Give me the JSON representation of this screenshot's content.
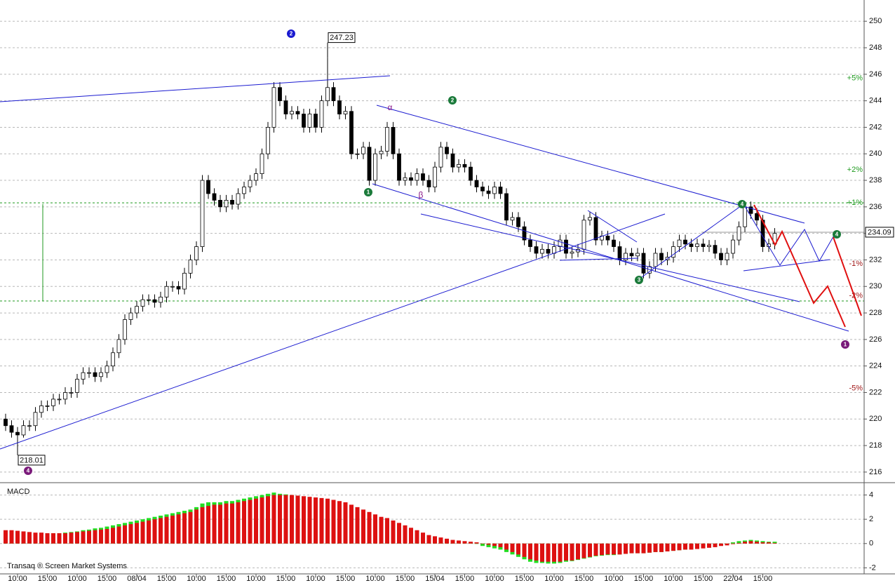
{
  "chart_data": [
    {
      "type": "candlestick",
      "categories": [
        null,
        null,
        "10:00",
        null,
        null,
        null,
        null,
        "15:00",
        null,
        null,
        null,
        null,
        "10:00",
        null,
        null,
        null,
        null,
        "15:00",
        null,
        null,
        null,
        null,
        "08/04",
        null,
        null,
        null,
        null,
        "15:00",
        null,
        null,
        null,
        null,
        "10:00",
        null,
        null,
        null,
        null,
        "15:00",
        null,
        null,
        null,
        null,
        "10:00",
        null,
        null,
        null,
        null,
        "15:00",
        null,
        null,
        null,
        null,
        "10:00",
        null,
        null,
        null,
        null,
        "15:00",
        null,
        null,
        null,
        null,
        "10:00",
        null,
        null,
        null,
        null,
        "15:00",
        null,
        null,
        null,
        null,
        "15/04",
        null,
        null,
        null,
        null,
        "15:00",
        null,
        null,
        null,
        null,
        "10:00",
        null,
        null,
        null,
        null,
        "15:00",
        null,
        null,
        null,
        null,
        "10:00",
        null,
        null,
        null,
        null,
        "15:00",
        null,
        null,
        null,
        null,
        "10:00",
        null,
        null,
        null,
        null,
        "15:00",
        null,
        null,
        null,
        null,
        "10:00",
        null,
        null,
        null,
        null,
        "15:00",
        null,
        null,
        null,
        null,
        "22/04",
        null,
        null,
        null,
        null,
        "15:00",
        null,
        null
      ],
      "open": [
        220,
        219.5,
        219,
        218.8,
        219.5,
        219.5,
        220.5,
        221,
        221,
        221.5,
        221.5,
        222,
        222,
        223,
        223.5,
        223.5,
        223.2,
        223.5,
        224,
        225,
        226,
        227.5,
        228,
        228.5,
        229,
        229,
        228.8,
        229.2,
        230,
        230,
        229.8,
        231,
        232,
        233,
        238,
        237,
        236.5,
        236,
        236.5,
        236.2,
        237,
        237.5,
        238,
        238.5,
        240,
        242,
        245,
        244,
        243,
        243.2,
        243,
        242,
        243,
        242,
        244,
        245,
        244,
        243,
        243.2,
        240,
        240,
        240.5,
        238,
        240,
        240.2,
        242,
        240,
        238,
        238.2,
        238,
        238.5,
        238,
        237.5,
        239,
        240.5,
        240,
        239,
        239.2,
        239,
        238,
        237.5,
        237.2,
        237,
        237.5,
        237,
        235,
        235.2,
        234.5,
        233.5,
        233,
        232.5,
        232.8,
        232.5,
        233,
        233.5,
        232.5,
        232.6,
        232.8,
        235,
        235.2,
        233.5,
        233.8,
        233.5,
        233,
        232,
        232.5,
        232.3,
        232.5,
        231,
        231.5,
        232.5,
        232,
        232.2,
        233,
        233.5,
        233.2,
        233,
        233.2,
        233,
        233.1,
        232.5,
        232,
        232.5,
        233.5,
        234.5,
        236,
        235.5,
        235,
        233,
        233.2
      ],
      "high": [
        220.4,
        219.9,
        219.4,
        219.9,
        219.9,
        220.9,
        221.4,
        221.4,
        221.9,
        221.9,
        222.4,
        222.4,
        223.4,
        223.9,
        223.9,
        223.9,
        223.9,
        224.4,
        225.4,
        226.4,
        227.9,
        228.4,
        228.9,
        229.4,
        229.4,
        229.4,
        229.6,
        230.4,
        230.4,
        230.4,
        231.4,
        232.4,
        233.4,
        238.4,
        238.4,
        237.4,
        236.9,
        236.9,
        236.9,
        237.4,
        237.9,
        238.4,
        238.9,
        240.4,
        242.4,
        245.4,
        245.4,
        244.4,
        243.6,
        243.6,
        243.4,
        243.4,
        243.4,
        244.4,
        247.23,
        245.4,
        244.4,
        243.6,
        243.6,
        240.4,
        240.9,
        240.9,
        240.4,
        240.6,
        242.4,
        242.4,
        240.4,
        238.6,
        238.6,
        238.9,
        238.9,
        238.4,
        239.4,
        240.9,
        240.9,
        240.4,
        239.6,
        239.6,
        239.4,
        238.4,
        237.9,
        237.6,
        237.9,
        237.9,
        237.4,
        235.6,
        235.6,
        234.9,
        233.9,
        233.4,
        233.2,
        233.2,
        233.4,
        233.9,
        233.9,
        233,
        233.2,
        235.4,
        235.6,
        235.6,
        234.2,
        234.2,
        233.9,
        233.4,
        232.9,
        232.9,
        232.9,
        232.9,
        231.9,
        232.9,
        232.9,
        232.6,
        233.4,
        233.9,
        233.9,
        233.6,
        233.6,
        233.6,
        233.5,
        233.5,
        232.9,
        232.9,
        233.9,
        234.9,
        236.4,
        236.4,
        235.9,
        235.4,
        233.6,
        234.4
      ],
      "low": [
        219.1,
        218.6,
        218.01,
        218.6,
        219.1,
        219.1,
        220.1,
        220.6,
        220.6,
        221.1,
        221.1,
        221.6,
        221.6,
        222.6,
        223.1,
        222.8,
        222.8,
        223.1,
        223.6,
        224.6,
        225.6,
        227.1,
        227.6,
        228.1,
        228.6,
        228.4,
        228.4,
        228.8,
        229.6,
        229.4,
        229.4,
        230.6,
        231.6,
        232.6,
        236.6,
        236.1,
        235.6,
        235.6,
        235.8,
        235.8,
        236.6,
        237.1,
        237.6,
        238.1,
        239.6,
        241.6,
        243.6,
        242.6,
        242.6,
        242.6,
        241.6,
        241.6,
        241.6,
        241.6,
        243.6,
        243.6,
        242.6,
        242.6,
        239.6,
        239.6,
        239.6,
        237.6,
        237.6,
        239.6,
        239.8,
        239.6,
        237.6,
        237.6,
        237.6,
        237.6,
        237.6,
        237.1,
        237.1,
        238.6,
        239.6,
        238.6,
        238.6,
        238.6,
        237.6,
        237.1,
        236.8,
        236.6,
        236.6,
        236.6,
        234.6,
        234.6,
        234.1,
        233.1,
        232.6,
        232.1,
        232.1,
        232.1,
        232.1,
        232.6,
        232.1,
        232.1,
        232.2,
        232.4,
        234.6,
        233.1,
        233.1,
        233.1,
        232.6,
        231.6,
        231.6,
        231.9,
        231.9,
        230.6,
        230.6,
        231.1,
        231.6,
        231.6,
        231.8,
        232.6,
        232.8,
        232.6,
        232.6,
        232.6,
        232.6,
        232.1,
        231.6,
        231.6,
        232.1,
        233.1,
        234.1,
        235.1,
        234.6,
        232.6,
        232.6,
        232.8
      ],
      "close": [
        219.5,
        219,
        218.8,
        219.5,
        219.5,
        220.5,
        221,
        221,
        221.5,
        221.5,
        222,
        222,
        223,
        223.5,
        223.5,
        223.2,
        223.5,
        224,
        225,
        226,
        227.5,
        228,
        228.5,
        229,
        229,
        228.8,
        229.2,
        230,
        230,
        229.8,
        231,
        232,
        233,
        238,
        237,
        236.5,
        236,
        236.5,
        236.2,
        237,
        237.5,
        238,
        238.5,
        240,
        242,
        245,
        244,
        243,
        243.2,
        243,
        242,
        243,
        242,
        244,
        245,
        244,
        243,
        243.2,
        240,
        240,
        240.5,
        238,
        240,
        240.2,
        242,
        240,
        238,
        238.2,
        238,
        238.5,
        238,
        237.5,
        239,
        240.5,
        240,
        239,
        239.2,
        239,
        238,
        237.5,
        237.2,
        237,
        237.5,
        237,
        235,
        235.2,
        234.5,
        233.5,
        233,
        232.5,
        232.8,
        232.5,
        233,
        233.5,
        232.5,
        232.6,
        232.8,
        235,
        235.2,
        233.5,
        233.8,
        233.5,
        233,
        232,
        232.5,
        232.3,
        232.5,
        231,
        231.5,
        232.5,
        232,
        232.2,
        233,
        233.5,
        233.2,
        233,
        233.2,
        233,
        233.1,
        232.5,
        232,
        232.5,
        233.5,
        234.5,
        236,
        235.5,
        235,
        233,
        233.2,
        234
      ],
      "up_color": "#ffffff",
      "down_color": "#000000",
      "ylim": [
        215.2,
        251.6
      ],
      "yticks": [
        216,
        218,
        220,
        222,
        224,
        226,
        228,
        230,
        232,
        234,
        236,
        238,
        240,
        242,
        244,
        246,
        248,
        250
      ],
      "grid": true,
      "price_labels": [
        247.23,
        218.01
      ],
      "last_price": 234.09,
      "levels": [
        {
          "label": "+5%",
          "value": 245.7,
          "color": "#1f9a1f"
        },
        {
          "label": "+2%",
          "value": 238.8,
          "color": "#1f9a1f"
        },
        {
          "label": "+1%",
          "value": 236.3,
          "color": "#1f9a1f",
          "line": true
        },
        {
          "label": "-1%",
          "value": 231.7,
          "color": "#a01818"
        },
        {
          "label": "-2%",
          "value": 229.3,
          "color": "#a01818"
        },
        {
          "label": "-5%",
          "value": 222.3,
          "color": "#a01818"
        }
      ],
      "level_line": {
        "value": 228.9,
        "color": "#1f9a1f"
      },
      "wave_labels": [
        {
          "label": "2",
          "color": "#1a1ad0"
        },
        {
          "label": "4",
          "color": "#7a1a7a"
        },
        {
          "label": "2",
          "color": "#1a7a3a"
        },
        {
          "label": "1",
          "color": "#1a7a3a"
        },
        {
          "label": "α",
          "color": "#8a1a8a"
        },
        {
          "label": "β",
          "color": "#8a1a8a"
        },
        {
          "label": "3",
          "color": "#1a7a3a"
        },
        {
          "label": "4",
          "color": "#1a7a3a"
        },
        {
          "label": "4",
          "color": "#1a7a3a"
        },
        {
          "label": "1",
          "color": "#7a1a7a"
        }
      ]
    },
    {
      "type": "bar",
      "title": "MACD",
      "source": "Transaq ® Screen Market Systems",
      "series": [
        {
          "color": "#22dd22",
          "values": [
            1.0,
            1.0,
            0.95,
            0.9,
            0.9,
            0.85,
            0.85,
            0.85,
            0.85,
            0.85,
            0.9,
            0.95,
            1.0,
            1.1,
            1.15,
            1.25,
            1.3,
            1.4,
            1.5,
            1.6,
            1.7,
            1.8,
            1.9,
            2.0,
            2.1,
            2.2,
            2.3,
            2.4,
            2.5,
            2.6,
            2.7,
            2.8,
            3.0,
            3.3,
            3.4,
            3.4,
            3.4,
            3.5,
            3.5,
            3.6,
            3.7,
            3.8,
            3.9,
            4.0,
            4.1,
            4.2,
            4.1,
            4.05,
            4.0,
            3.9,
            3.85,
            3.8,
            3.75,
            3.7,
            3.65,
            3.55,
            3.45,
            3.3,
            3.1,
            2.9,
            2.7,
            2.5,
            2.3,
            2.1,
            2.0,
            1.8,
            1.6,
            1.4,
            1.2,
            1.0,
            0.8,
            0.6,
            0.5,
            0.4,
            0.3,
            0.2,
            0.15,
            0.1,
            0.05,
            0.0,
            -0.2,
            -0.3,
            -0.4,
            -0.5,
            -0.7,
            -0.9,
            -1.1,
            -1.3,
            -1.5,
            -1.6,
            -1.6,
            -1.65,
            -1.65,
            -1.6,
            -1.5,
            -1.45,
            -1.35,
            -1.25,
            -1.15,
            -1.05,
            -1.0,
            -0.95,
            -0.95,
            -0.9,
            -0.85,
            -0.8,
            -0.8,
            -0.8,
            -0.75,
            -0.7,
            -0.7,
            -0.65,
            -0.6,
            -0.55,
            -0.5,
            -0.45,
            -0.4,
            -0.35,
            -0.3,
            -0.25,
            -0.1,
            0.0,
            0.1,
            0.2,
            0.25,
            0.3,
            0.25,
            0.2,
            0.15,
            0.15
          ]
        },
        {
          "color": "#dd1111",
          "values": [
            1.1,
            1.1,
            1.05,
            1.0,
            0.95,
            0.9,
            0.9,
            0.85,
            0.85,
            0.85,
            0.85,
            0.9,
            0.95,
            1.0,
            1.05,
            1.1,
            1.15,
            1.2,
            1.3,
            1.4,
            1.5,
            1.6,
            1.7,
            1.8,
            1.9,
            2.0,
            2.1,
            2.2,
            2.3,
            2.4,
            2.5,
            2.6,
            2.8,
            3.0,
            3.1,
            3.2,
            3.2,
            3.3,
            3.3,
            3.4,
            3.5,
            3.6,
            3.7,
            3.8,
            3.9,
            4.0,
            4.0,
            4.0,
            4.0,
            3.95,
            3.9,
            3.85,
            3.8,
            3.75,
            3.7,
            3.6,
            3.5,
            3.4,
            3.2,
            3.0,
            2.8,
            2.6,
            2.4,
            2.2,
            2.1,
            1.9,
            1.7,
            1.5,
            1.3,
            1.1,
            0.9,
            0.7,
            0.6,
            0.5,
            0.4,
            0.3,
            0.25,
            0.2,
            0.15,
            0.1,
            0.0,
            -0.1,
            -0.2,
            -0.3,
            -0.5,
            -0.7,
            -0.9,
            -1.1,
            -1.3,
            -1.4,
            -1.5,
            -1.5,
            -1.5,
            -1.5,
            -1.4,
            -1.4,
            -1.3,
            -1.2,
            -1.1,
            -1.0,
            -0.95,
            -0.9,
            -0.9,
            -0.9,
            -0.85,
            -0.8,
            -0.8,
            -0.8,
            -0.75,
            -0.7,
            -0.7,
            -0.65,
            -0.6,
            -0.55,
            -0.5,
            -0.5,
            -0.45,
            -0.4,
            -0.35,
            -0.3,
            -0.2,
            -0.15,
            -0.05,
            0.05,
            0.15,
            0.2,
            0.15,
            0.1,
            0.1,
            0.05
          ]
        }
      ],
      "ylim": [
        -2.5,
        4.9
      ],
      "yticks": [
        -2,
        0,
        2,
        4
      ],
      "grid": true
    }
  ]
}
